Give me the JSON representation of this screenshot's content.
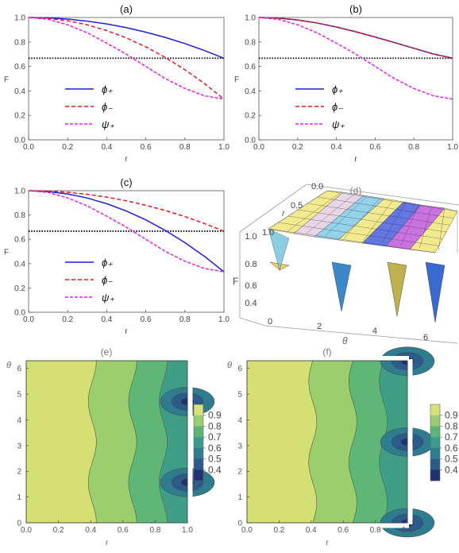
{
  "colors": {
    "phi_plus": "#1f1fd6",
    "phi_minus": "#e21c1c",
    "psi_plus": "#e61ee6",
    "threshold": "#000000"
  },
  "chart_data": [
    {
      "id": "a",
      "type": "line",
      "title": "(a)",
      "xlabel": "r",
      "ylabel": "F",
      "xlim": [
        0,
        1
      ],
      "ylim": [
        0,
        1
      ],
      "xticks": [
        "0.0",
        "0.2",
        "0.4",
        "0.6",
        "0.8",
        "1.0"
      ],
      "yticks": [
        "0.0",
        "0.2",
        "0.4",
        "0.6",
        "0.8",
        "1.0"
      ],
      "legend_position": "bottom-left",
      "x": [
        0,
        0.1,
        0.2,
        0.3,
        0.4,
        0.5,
        0.6,
        0.7,
        0.8,
        0.9,
        1.0
      ],
      "series": [
        {
          "name": "ϕ₊",
          "style": "solid",
          "color": "#1f1fd6",
          "values": [
            1.0,
            0.997,
            0.987,
            0.97,
            0.947,
            0.917,
            0.88,
            0.837,
            0.787,
            0.73,
            0.667
          ]
        },
        {
          "name": "ϕ₋",
          "style": "dashed",
          "color": "#e21c1c",
          "values": [
            1.0,
            0.993,
            0.973,
            0.94,
            0.893,
            0.833,
            0.76,
            0.673,
            0.573,
            0.46,
            0.333
          ]
        },
        {
          "name": "ψ₊",
          "style": "dashed",
          "color": "#e61ee6",
          "values": [
            1.0,
            0.985,
            0.94,
            0.875,
            0.79,
            0.7,
            0.6,
            0.5,
            0.42,
            0.36,
            0.333
          ]
        }
      ],
      "threshold": 0.667
    },
    {
      "id": "b",
      "type": "line",
      "title": "(b)",
      "xlabel": "r",
      "ylabel": "F",
      "xlim": [
        0,
        1
      ],
      "ylim": [
        0,
        1
      ],
      "xticks": [
        "0.0",
        "0.2",
        "0.4",
        "0.6",
        "0.8",
        "1.0"
      ],
      "yticks": [
        "0.0",
        "0.2",
        "0.4",
        "0.6",
        "0.8",
        "1.0"
      ],
      "legend_position": "bottom-left",
      "x": [
        0,
        0.1,
        0.2,
        0.3,
        0.4,
        0.5,
        0.6,
        0.7,
        0.8,
        0.9,
        1.0
      ],
      "series": [
        {
          "name": "ϕ₊",
          "style": "solid",
          "color": "#1f1fd6",
          "values": [
            1.0,
            0.995,
            0.98,
            0.955,
            0.922,
            0.883,
            0.84,
            0.795,
            0.748,
            0.702,
            0.667
          ]
        },
        {
          "name": "ϕ₋",
          "style": "dashed",
          "color": "#e21c1c",
          "values": [
            1.0,
            0.995,
            0.98,
            0.955,
            0.922,
            0.883,
            0.84,
            0.795,
            0.748,
            0.702,
            0.667
          ]
        },
        {
          "name": "ψ₊",
          "style": "dashed",
          "color": "#e61ee6",
          "values": [
            1.0,
            0.985,
            0.94,
            0.875,
            0.79,
            0.7,
            0.6,
            0.5,
            0.42,
            0.36,
            0.333
          ]
        }
      ],
      "threshold": 0.667
    },
    {
      "id": "c",
      "type": "line",
      "title": "(c)",
      "xlabel": "r",
      "ylabel": "F",
      "xlim": [
        0,
        1
      ],
      "ylim": [
        0,
        1
      ],
      "xticks": [
        "0.0",
        "0.2",
        "0.4",
        "0.6",
        "0.8",
        "1.0"
      ],
      "yticks": [
        "0.0",
        "0.2",
        "0.4",
        "0.6",
        "0.8",
        "1.0"
      ],
      "legend_position": "bottom-left",
      "x": [
        0,
        0.1,
        0.2,
        0.3,
        0.4,
        0.5,
        0.6,
        0.7,
        0.8,
        0.9,
        1.0
      ],
      "series": [
        {
          "name": "ϕ₊",
          "style": "solid",
          "color": "#1f1fd6",
          "values": [
            1.0,
            0.993,
            0.973,
            0.94,
            0.893,
            0.833,
            0.76,
            0.673,
            0.573,
            0.46,
            0.333
          ]
        },
        {
          "name": "ϕ₋",
          "style": "dashed",
          "color": "#e21c1c",
          "values": [
            1.0,
            0.997,
            0.987,
            0.97,
            0.947,
            0.917,
            0.88,
            0.837,
            0.787,
            0.73,
            0.667
          ]
        },
        {
          "name": "ψ₊",
          "style": "dashed",
          "color": "#e61ee6",
          "values": [
            1.0,
            0.985,
            0.94,
            0.875,
            0.79,
            0.7,
            0.6,
            0.5,
            0.42,
            0.36,
            0.333
          ]
        }
      ],
      "threshold": 0.667
    },
    {
      "id": "d",
      "type": "surface",
      "title": "(d)",
      "xlabel": "θ",
      "ylabel": "r",
      "zlabel": "F",
      "r_ticks": [
        "0.0",
        "0.5",
        "1.0"
      ],
      "theta_ticks": [
        "0",
        "2",
        "4",
        "6"
      ],
      "z_ticks": [
        "0.4",
        "0.6",
        "0.8",
        "1.0"
      ]
    },
    {
      "id": "e",
      "type": "heatmap",
      "title": "(e)",
      "xlabel": "r",
      "ylabel": "θ",
      "xlim": [
        0,
        1
      ],
      "ylim": [
        0,
        6.3
      ],
      "xticks": [
        "0.0",
        "0.2",
        "0.4",
        "0.6",
        "0.8",
        "1.0"
      ],
      "yticks": [
        "0",
        "1",
        "2",
        "3",
        "4",
        "5",
        "6"
      ],
      "contour_boundaries": [
        0.41,
        0.66,
        0.85
      ],
      "wave_amplitude": 0.025,
      "wave_phase": 1.57,
      "minima_theta": [
        1.57,
        4.71
      ],
      "colorbar_labels": [
        "0.9",
        "0.8",
        "0.7",
        "0.6",
        "0.5",
        "0.4"
      ],
      "colorbar_colors": [
        "#d9e07a",
        "#98cd70",
        "#5bb578",
        "#3b9b88",
        "#2f7c8e",
        "#2b5b8a",
        "#21306e"
      ]
    },
    {
      "id": "f",
      "type": "heatmap",
      "title": "(f)",
      "xlabel": "r",
      "ylabel": "θ",
      "xlim": [
        0,
        1
      ],
      "ylim": [
        0,
        6.3
      ],
      "xticks": [
        "0.0",
        "0.2",
        "0.4",
        "0.6",
        "0.8",
        "1.0"
      ],
      "yticks": [
        "0",
        "1",
        "2",
        "3",
        "4",
        "5",
        "6"
      ],
      "contour_boundaries": [
        0.41,
        0.66,
        0.85
      ],
      "wave_amplitude": 0.025,
      "wave_phase": 0,
      "minima_theta": [
        0,
        3.14,
        6.28
      ],
      "colorbar_labels": [
        "0.9",
        "0.8",
        "0.7",
        "0.6",
        "0.5",
        "0.4"
      ],
      "colorbar_colors": [
        "#d9e07a",
        "#98cd70",
        "#5bb578",
        "#3b9b88",
        "#2f7c8e",
        "#2b5b8a",
        "#21306e"
      ]
    }
  ]
}
